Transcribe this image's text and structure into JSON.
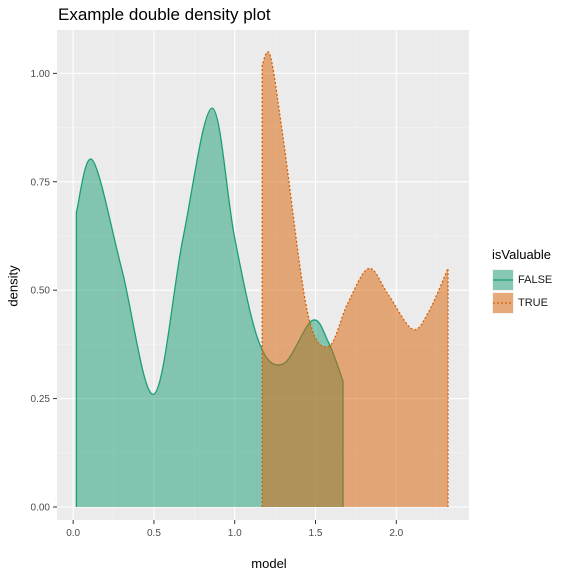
{
  "chart_data": {
    "type": "area",
    "title": "Example double density plot",
    "xlabel": "model",
    "ylabel": "density",
    "xlim": [
      -0.1,
      2.45
    ],
    "ylim": [
      -0.03,
      1.1
    ],
    "x_ticks": [
      0.0,
      0.5,
      1.0,
      1.5,
      2.0
    ],
    "x_tick_labels": [
      "0.0",
      "0.5",
      "1.0",
      "1.5",
      "2.0"
    ],
    "y_ticks": [
      0.0,
      0.25,
      0.5,
      0.75,
      1.0
    ],
    "y_tick_labels": [
      "0.00",
      "0.25",
      "0.50",
      "0.75",
      "1.00"
    ],
    "grid": true,
    "legend": {
      "title": "isValuable",
      "position": "right"
    },
    "series": [
      {
        "name": "FALSE",
        "fill": "#1b9e77",
        "line": "#1b9e77",
        "linetype": "solid",
        "points": [
          [
            0.02,
            0.68
          ],
          [
            0.12,
            0.8
          ],
          [
            0.3,
            0.55
          ],
          [
            0.5,
            0.26
          ],
          [
            0.68,
            0.62
          ],
          [
            0.86,
            0.92
          ],
          [
            1.0,
            0.62
          ],
          [
            1.15,
            0.38
          ],
          [
            1.3,
            0.33
          ],
          [
            1.48,
            0.43
          ],
          [
            1.58,
            0.38
          ],
          [
            1.67,
            0.29
          ]
        ]
      },
      {
        "name": "TRUE",
        "fill": "#d95f02",
        "line": "#d95f02",
        "linetype": "dashed",
        "points": [
          [
            1.17,
            1.02
          ],
          [
            1.22,
            1.04
          ],
          [
            1.3,
            0.85
          ],
          [
            1.45,
            0.45
          ],
          [
            1.58,
            0.37
          ],
          [
            1.7,
            0.47
          ],
          [
            1.83,
            0.55
          ],
          [
            1.95,
            0.49
          ],
          [
            2.1,
            0.41
          ],
          [
            2.2,
            0.45
          ],
          [
            2.32,
            0.55
          ]
        ]
      }
    ]
  }
}
